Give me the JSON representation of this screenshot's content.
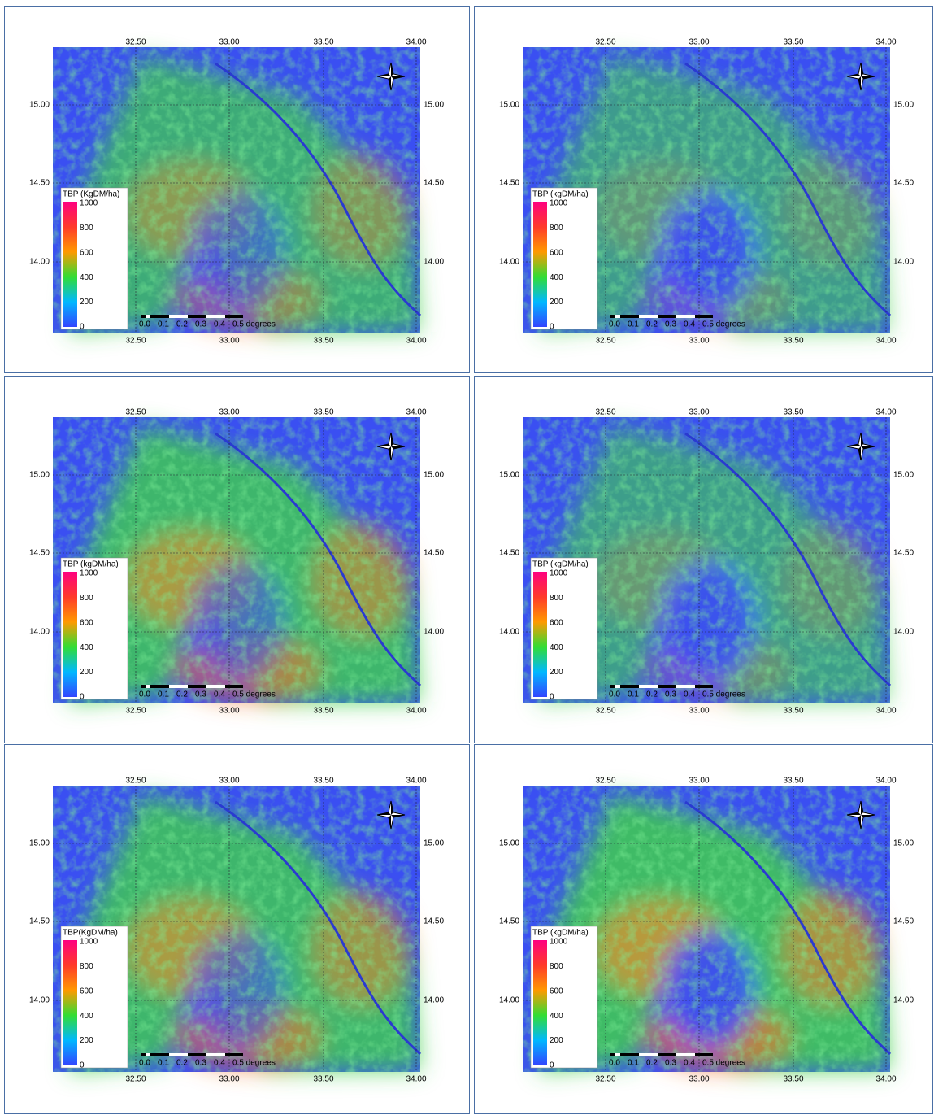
{
  "panels": [
    {
      "legend_title": "TBP (KgDM/ha)"
    },
    {
      "legend_title": "TBP (kgDM/ha)"
    },
    {
      "legend_title": "TBP (kgDM/ha)"
    },
    {
      "legend_title": "TBP (kgDM/ha)"
    },
    {
      "legend_title": "TBP(KgDM/ha)"
    },
    {
      "legend_title": "TBP (kgDM/ha)"
    }
  ],
  "x_labels": [
    "32.50",
    "33.00",
    "33.50",
    "34.00"
  ],
  "y_labels": [
    "15.00",
    "14.50",
    "14.00"
  ],
  "legend_labels": [
    "1000",
    "800",
    "600",
    "400",
    "200",
    "0"
  ],
  "scale_labels": [
    "0.0",
    "0.1",
    "0.2",
    "0.3",
    "0.4",
    "0.5 degrees"
  ]
}
